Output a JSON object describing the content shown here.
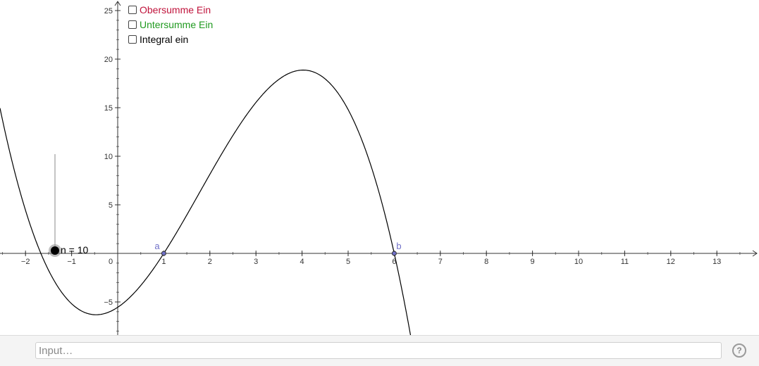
{
  "checkboxes": [
    {
      "label": "Obersumme Ein",
      "color": "#c0143c",
      "checked": false
    },
    {
      "label": "Untersumme Ein",
      "color": "#1f9a1f",
      "checked": false
    },
    {
      "label": "Integral ein",
      "color": "#000000",
      "checked": false
    }
  ],
  "axes": {
    "x_ticks": [
      "−2",
      "−1",
      "0",
      "1",
      "2",
      "3",
      "4",
      "5",
      "6",
      "7",
      "8",
      "9",
      "10",
      "11",
      "12",
      "13"
    ],
    "y_ticks": [
      "−5",
      "5",
      "10",
      "15",
      "20",
      "25"
    ]
  },
  "points": {
    "a": {
      "label": "a",
      "x": 1,
      "y": 0
    },
    "b": {
      "label": "b",
      "x": 6,
      "y": 0
    }
  },
  "slider": {
    "label": "n = 10",
    "value": 10
  },
  "input_bar": {
    "placeholder": "Input…"
  },
  "help": {
    "glyph": "?"
  },
  "colors": {
    "point": "#7070c8",
    "curve": "#000000"
  }
}
